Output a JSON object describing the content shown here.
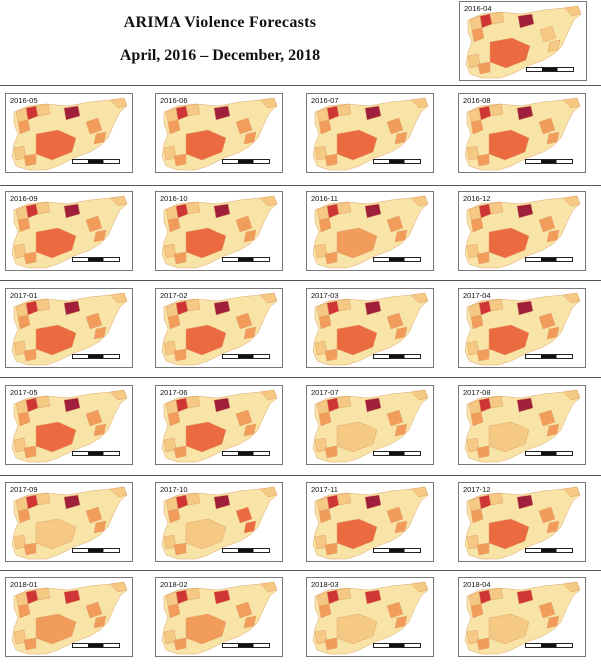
{
  "title": "ARIMA Violence Forecasts",
  "subtitle": "April, 2016 – December, 2018",
  "palette": {
    "pale": "#f9e4a8",
    "light": "#f5c884",
    "orange": "#f29c5c",
    "red_orange": "#ec6a3f",
    "red": "#cf3535",
    "dark_red": "#a01f3a",
    "border": "#e0a56c"
  },
  "panels": [
    {
      "label": "2016-04",
      "desert": "red_orange",
      "north": "dark_red",
      "east": "light"
    },
    {
      "label": "2016-05",
      "desert": "red_orange",
      "north": "dark_red",
      "east": "orange"
    },
    {
      "label": "2016-06",
      "desert": "red_orange",
      "north": "dark_red",
      "east": "orange"
    },
    {
      "label": "2016-07",
      "desert": "red_orange",
      "north": "dark_red",
      "east": "orange"
    },
    {
      "label": "2016-08",
      "desert": "red_orange",
      "north": "dark_red",
      "east": "orange"
    },
    {
      "label": "2016-09",
      "desert": "red_orange",
      "north": "dark_red",
      "east": "orange"
    },
    {
      "label": "2016-10",
      "desert": "red_orange",
      "north": "dark_red",
      "east": "orange"
    },
    {
      "label": "2016-11",
      "desert": "orange",
      "north": "dark_red",
      "east": "orange"
    },
    {
      "label": "2016-12",
      "desert": "red_orange",
      "north": "dark_red",
      "east": "orange"
    },
    {
      "label": "2017-01",
      "desert": "red_orange",
      "north": "dark_red",
      "east": "orange"
    },
    {
      "label": "2017-02",
      "desert": "red_orange",
      "north": "dark_red",
      "east": "orange"
    },
    {
      "label": "2017-03",
      "desert": "red_orange",
      "north": "dark_red",
      "east": "orange"
    },
    {
      "label": "2017-04",
      "desert": "red_orange",
      "north": "dark_red",
      "east": "orange"
    },
    {
      "label": "2017-05",
      "desert": "red_orange",
      "north": "dark_red",
      "east": "orange"
    },
    {
      "label": "2017-06",
      "desert": "red_orange",
      "north": "dark_red",
      "east": "orange"
    },
    {
      "label": "2017-07",
      "desert": "light",
      "north": "dark_red",
      "east": "orange"
    },
    {
      "label": "2017-08",
      "desert": "light",
      "north": "dark_red",
      "east": "orange"
    },
    {
      "label": "2017-09",
      "desert": "light",
      "north": "dark_red",
      "east": "orange"
    },
    {
      "label": "2017-10",
      "desert": "light",
      "north": "dark_red",
      "east": "red_orange"
    },
    {
      "label": "2017-11",
      "desert": "red_orange",
      "north": "dark_red",
      "east": "orange"
    },
    {
      "label": "2017-12",
      "desert": "red_orange",
      "north": "dark_red",
      "east": "orange"
    },
    {
      "label": "2018-01",
      "desert": "orange",
      "north": "red",
      "east": "orange"
    },
    {
      "label": "2018-02",
      "desert": "orange",
      "north": "red",
      "east": "orange"
    },
    {
      "label": "2018-03",
      "desert": "light",
      "north": "red",
      "east": "orange"
    },
    {
      "label": "2018-04",
      "desert": "light",
      "north": "red",
      "east": "orange"
    }
  ]
}
